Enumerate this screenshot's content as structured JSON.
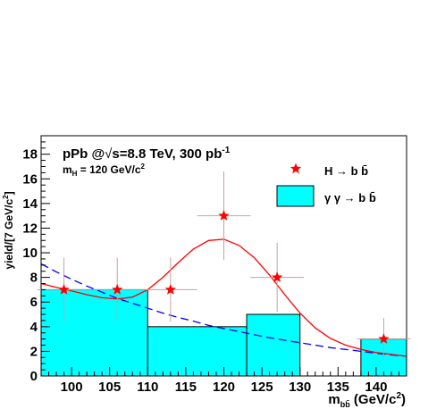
{
  "chart_data": {
    "type": "bar",
    "annotations": {
      "line1": "pPb @",
      "sqrt_symbol": "√",
      "line1b": "s=8.8 TeV, 300 pb",
      "line1_sup": "-1",
      "line2": "m",
      "line2_sub": "H",
      "line2b": " = 120 GeV/c",
      "line2_sup": "2"
    },
    "ylabel": "yield/[7 GeV/c",
    "ylabel_sup": "2",
    "ylabel_end": "]",
    "xlabel": {
      "main": "m",
      "sub": "bb̄",
      "units": "(GeV/c",
      "units_sup": "2",
      "units_end": ")"
    },
    "xlim": [
      96,
      144
    ],
    "ylim": [
      0,
      19.5
    ],
    "x_ticks": [
      100,
      105,
      110,
      115,
      120,
      125,
      130,
      135,
      140
    ],
    "y_ticks": [
      0,
      2,
      4,
      6,
      8,
      10,
      12,
      14,
      16,
      18
    ],
    "legend": {
      "placement": "top-right",
      "signal_label": "H → b b̄",
      "background_label": "γ γ → b b̄"
    },
    "background_histogram": {
      "name": "γ γ → b b̄",
      "color": "#00ffff",
      "bins": [
        {
          "x_low": 96,
          "x_high": 110,
          "y": 7
        },
        {
          "x_low": 110,
          "x_high": 123,
          "y": 4
        },
        {
          "x_low": 123,
          "x_high": 130,
          "y": 5
        },
        {
          "x_low": 130,
          "x_high": 138,
          "y": 0
        },
        {
          "x_low": 138,
          "x_high": 144,
          "y": 3
        }
      ]
    },
    "signal_points": {
      "name": "H → b b̄",
      "color": "#ff0000",
      "points": [
        {
          "x": 99,
          "y": 7,
          "xerr": 3.5,
          "yerr": 2.6
        },
        {
          "x": 106,
          "y": 7,
          "xerr": 3.5,
          "yerr": 2.6
        },
        {
          "x": 113,
          "y": 7,
          "xerr": 3.5,
          "yerr": 2.6
        },
        {
          "x": 120,
          "y": 13,
          "xerr": 3.5,
          "yerr": 3.6
        },
        {
          "x": 127,
          "y": 8,
          "xerr": 3.5,
          "yerr": 2.8
        },
        {
          "x": 141,
          "y": 3,
          "xerr": 3.5,
          "yerr": 1.7
        }
      ]
    },
    "fit_total": {
      "color": "#ff0000",
      "points": [
        [
          96,
          7.5
        ],
        [
          98,
          7.2
        ],
        [
          100,
          6.9
        ],
        [
          102,
          6.6
        ],
        [
          104,
          6.35
        ],
        [
          106,
          6.25
        ],
        [
          108,
          6.4
        ],
        [
          110,
          7.0
        ],
        [
          112,
          8.0
        ],
        [
          114,
          9.2
        ],
        [
          116,
          10.3
        ],
        [
          118,
          11.0
        ],
        [
          120,
          11.1
        ],
        [
          122,
          10.6
        ],
        [
          124,
          9.6
        ],
        [
          126,
          8.2
        ],
        [
          128,
          6.6
        ],
        [
          130,
          5.1
        ],
        [
          132,
          3.9
        ],
        [
          134,
          3.05
        ],
        [
          136,
          2.5
        ],
        [
          138,
          2.15
        ],
        [
          140,
          1.9
        ],
        [
          142,
          1.75
        ],
        [
          144,
          1.6
        ]
      ]
    },
    "fit_background": {
      "color": "#0000ff",
      "points": [
        [
          96,
          9.1
        ],
        [
          98,
          8.45
        ],
        [
          100,
          7.85
        ],
        [
          102,
          7.3
        ],
        [
          104,
          6.8
        ],
        [
          106,
          6.3
        ],
        [
          108,
          5.9
        ],
        [
          110,
          5.5
        ],
        [
          112,
          5.1
        ],
        [
          114,
          4.75
        ],
        [
          116,
          4.45
        ],
        [
          118,
          4.1
        ],
        [
          120,
          3.85
        ],
        [
          122,
          3.6
        ],
        [
          124,
          3.35
        ],
        [
          126,
          3.1
        ],
        [
          128,
          2.9
        ],
        [
          130,
          2.7
        ],
        [
          132,
          2.5
        ],
        [
          134,
          2.3
        ],
        [
          136,
          2.15
        ],
        [
          138,
          2.0
        ],
        [
          140,
          1.85
        ],
        [
          142,
          1.7
        ],
        [
          144,
          1.6
        ]
      ]
    }
  }
}
